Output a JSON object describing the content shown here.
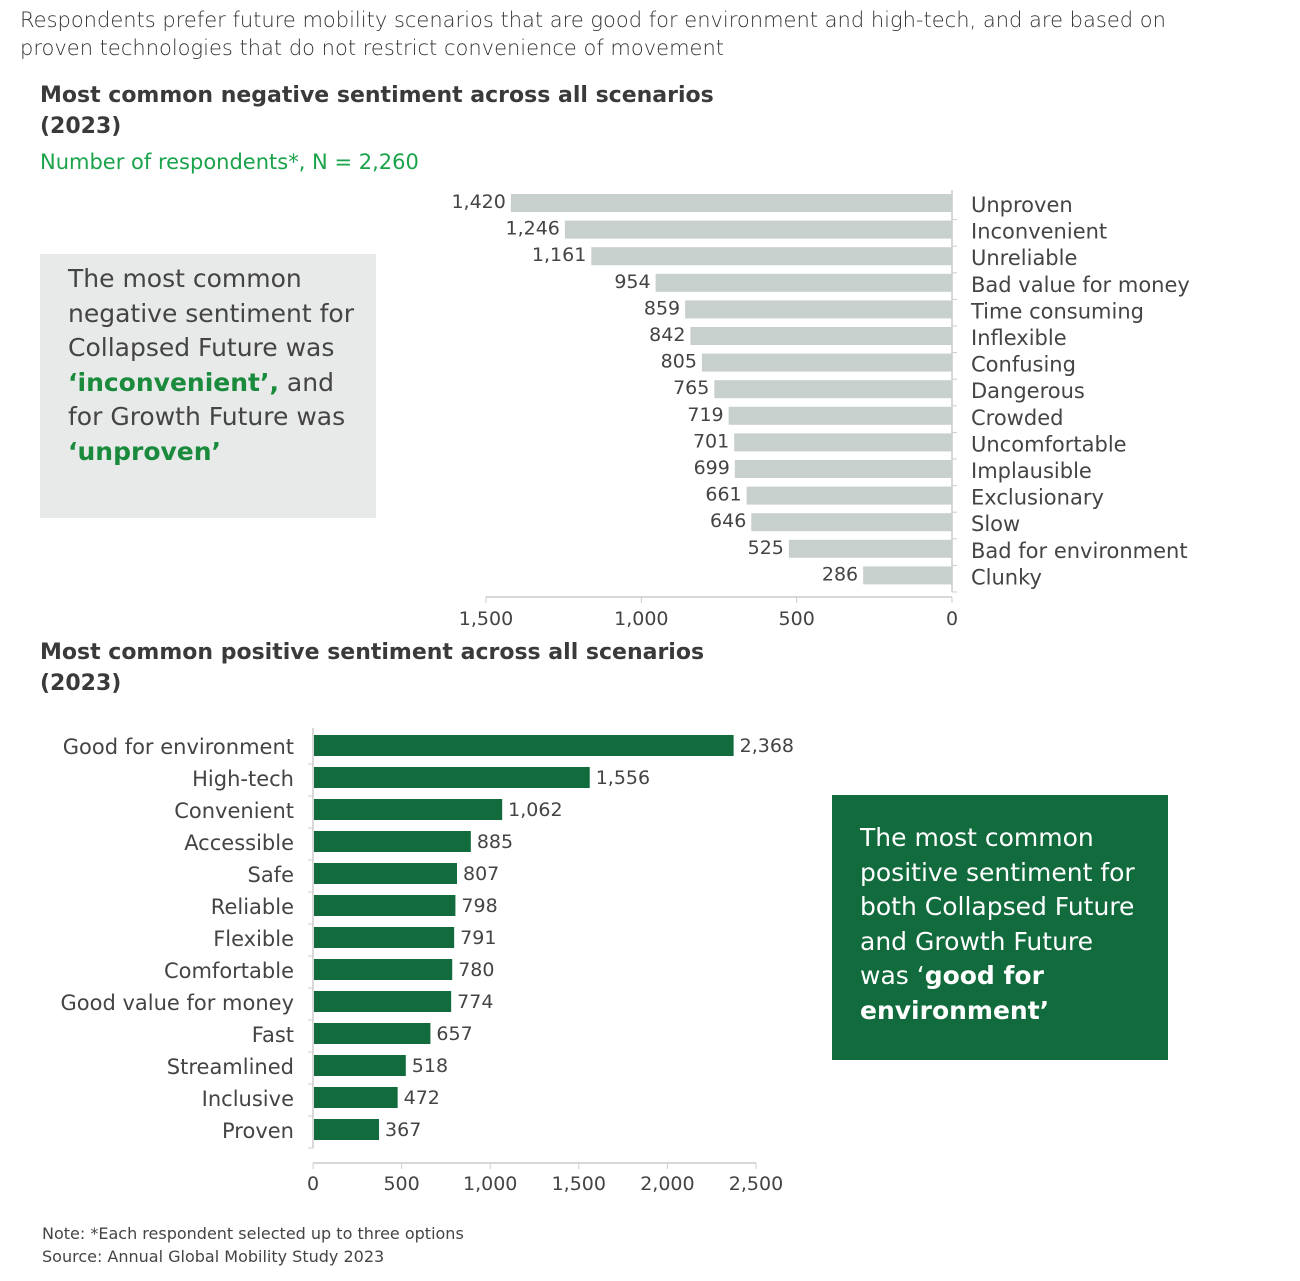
{
  "headline": "Respondents prefer future mobility scenarios that are good for environment and high-tech, and are based on proven technologies that do not restrict convenience of movement",
  "colors": {
    "negative_bar": "#c8d0ce",
    "positive_bar": "#116b3c",
    "accent_text": "#1aa34a",
    "negative_callout_bg": "#e8eae9",
    "positive_callout_bg": "#116b3c"
  },
  "negative_callout": {
    "text1": "The most common negative sentiment for Collapsed Future was ",
    "highlight1": "‘inconvenient’,",
    "text2": " and for Growth Future was ",
    "highlight2": "‘unproven’"
  },
  "positive_callout": {
    "text1": "The most common positive sentiment for both Collapsed Future and Growth Future was ‘",
    "highlight1": "good for environment’"
  },
  "note": "Note: *Each respondent selected up to three options",
  "source": "Source: Annual Global Mobility Study 2023",
  "chart_data": [
    {
      "type": "bar",
      "orientation": "horizontal-reversed",
      "title": "Most common negative sentiment across all scenarios (2023)",
      "subtitle": "Number of respondents*, N = 2,260",
      "categories": [
        "Unproven",
        "Inconvenient",
        "Unreliable",
        "Bad value for money",
        "Time consuming",
        "Inflexible",
        "Confusing",
        "Dangerous",
        "Crowded",
        "Uncomfortable",
        "Implausible",
        "Exclusionary",
        "Slow",
        "Bad for environment",
        "Clunky"
      ],
      "values": [
        1420,
        1246,
        1161,
        954,
        859,
        842,
        805,
        765,
        719,
        701,
        699,
        661,
        646,
        525,
        286
      ],
      "value_labels": [
        "1,420",
        "1,246",
        "1,161",
        "954",
        "859",
        "842",
        "805",
        "765",
        "719",
        "701",
        "699",
        "661",
        "646",
        "525",
        "286"
      ],
      "xlim": [
        0,
        1500
      ],
      "x_ticks": [
        1500,
        1000,
        500,
        0
      ],
      "x_tick_labels": [
        "1,500",
        "1,000",
        "500",
        "0"
      ],
      "grid": false
    },
    {
      "type": "bar",
      "orientation": "horizontal",
      "title": "Most common positive sentiment across all scenarios (2023)",
      "categories": [
        "Good for environment",
        "High-tech",
        "Convenient",
        "Accessible",
        "Safe",
        "Reliable",
        "Flexible",
        "Comfortable",
        "Good value for money",
        "Fast",
        "Streamlined",
        "Inclusive",
        "Proven"
      ],
      "values": [
        2368,
        1556,
        1062,
        885,
        807,
        798,
        791,
        780,
        774,
        657,
        518,
        472,
        367
      ],
      "value_labels": [
        "2,368",
        "1,556",
        "1,062",
        "885",
        "807",
        "798",
        "791",
        "780",
        "774",
        "657",
        "518",
        "472",
        "367"
      ],
      "xlim": [
        0,
        2500
      ],
      "x_ticks": [
        0,
        500,
        1000,
        1500,
        2000,
        2500
      ],
      "x_tick_labels": [
        "0",
        "500",
        "1,000",
        "1,500",
        "2,000",
        "2,500"
      ],
      "grid": false
    }
  ]
}
